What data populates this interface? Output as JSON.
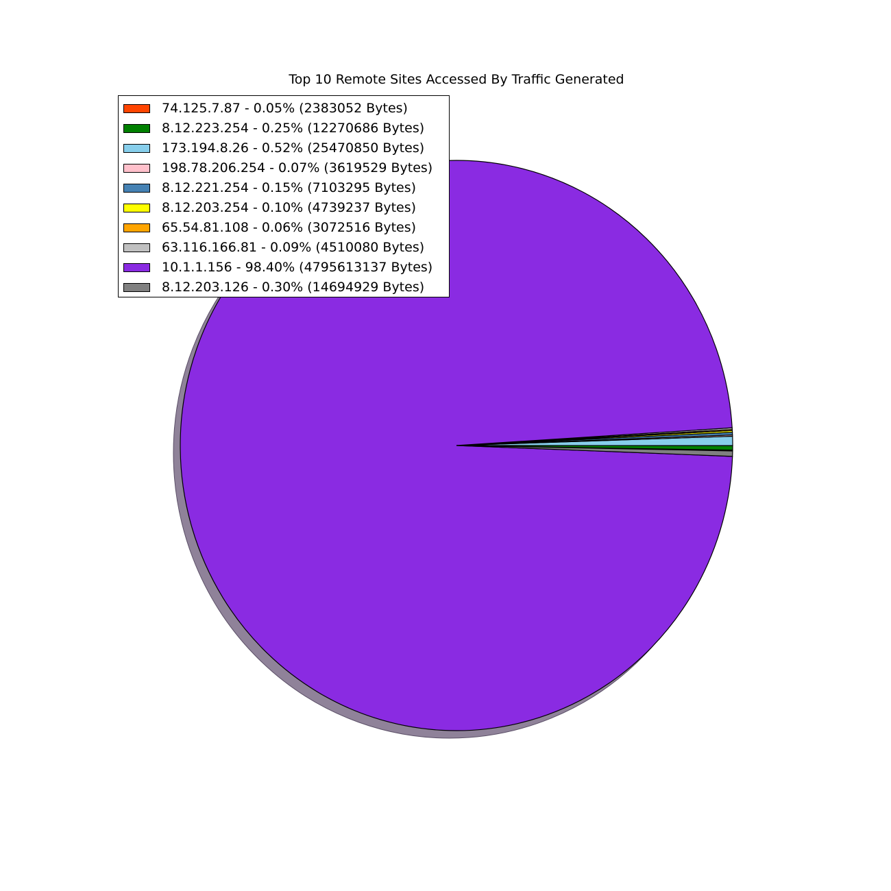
{
  "chart_data": {
    "type": "pie",
    "title": "Top 10 Remote Sites Accessed By Traffic Generated",
    "legend_position": "top-left",
    "shadow": true,
    "slices": [
      {
        "label": "74.125.7.87 - 0.05% (2383052 Bytes)",
        "value": 2383052,
        "percent": 0.05,
        "color": "#ff4500"
      },
      {
        "label": "8.12.223.254 - 0.25% (12270686 Bytes)",
        "value": 12270686,
        "percent": 0.25,
        "color": "#008000"
      },
      {
        "label": "173.194.8.26 - 0.52% (25470850 Bytes)",
        "value": 25470850,
        "percent": 0.52,
        "color": "#87ceeb"
      },
      {
        "label": "198.78.206.254 - 0.07% (3619529 Bytes)",
        "value": 3619529,
        "percent": 0.07,
        "color": "#ffc0cb"
      },
      {
        "label": "8.12.221.254 - 0.15% (7103295 Bytes)",
        "value": 7103295,
        "percent": 0.15,
        "color": "#4682b4"
      },
      {
        "label": "8.12.203.254 - 0.10% (4739237 Bytes)",
        "value": 4739237,
        "percent": 0.1,
        "color": "#ffff00"
      },
      {
        "label": "65.54.81.108 - 0.06% (3072516 Bytes)",
        "value": 3072516,
        "percent": 0.06,
        "color": "#ffa500"
      },
      {
        "label": "63.116.166.81 - 0.09% (4510080 Bytes)",
        "value": 4510080,
        "percent": 0.09,
        "color": "#c0c0c0"
      },
      {
        "label": "10.1.1.156 - 98.40% (4795613137 Bytes)",
        "value": 4795613137,
        "percent": 98.4,
        "color": "#8a2be2"
      },
      {
        "label": "8.12.203.126 - 0.30% (14694929 Bytes)",
        "value": 14694929,
        "percent": 0.3,
        "color": "#808080"
      }
    ]
  }
}
